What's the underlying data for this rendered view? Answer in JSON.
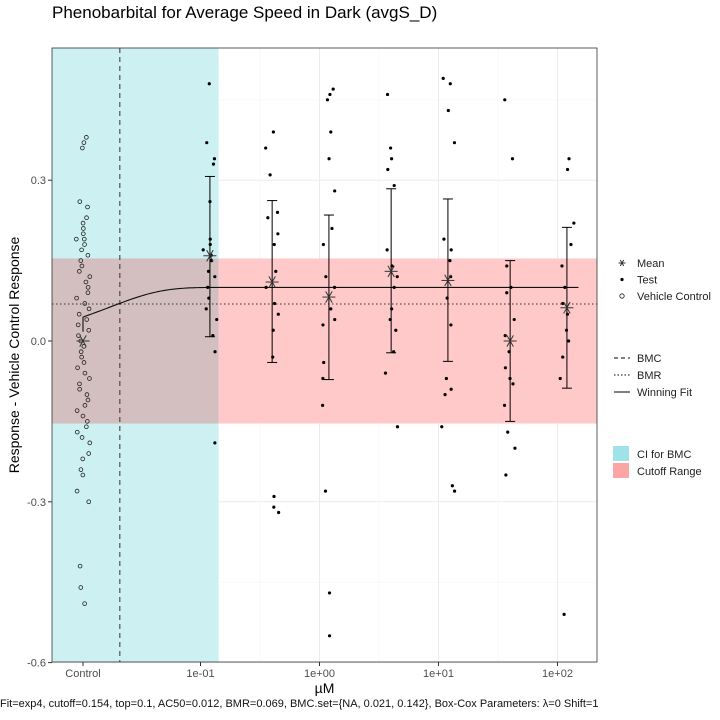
{
  "chart_data": {
    "type": "scatter",
    "title": "Phenobarbital for Average Speed in Dark (avgS_D)",
    "xlabel": "µM",
    "ylabel": "Response - Vehicle Control Response",
    "x_scale": "log10",
    "ylim": [
      -0.6,
      0.55
    ],
    "y_ticks": [
      -0.6,
      -0.3,
      0.0,
      0.3
    ],
    "y_tick_labels": [
      "-0.6",
      "-0.3",
      "0.0",
      "0.3"
    ],
    "x_tick_labels": [
      "Control",
      "1e-01",
      "1e+00",
      "1e+01",
      "1e+02"
    ],
    "x_tick_values": [
      null,
      0.1,
      1,
      10,
      100
    ],
    "grid": true,
    "cutoff": 0.154,
    "bmr": 0.069,
    "bmc": 0.021,
    "bmc_ci": [
      null,
      0.142
    ],
    "fit": {
      "model": "exp4",
      "top": 0.1,
      "ac50": 0.012
    },
    "groups": [
      {
        "conc": "Control",
        "mean": 0.0,
        "ci_low": null,
        "ci_high": null
      },
      {
        "conc": 0.12,
        "mean": 0.159,
        "ci_low": 0.008,
        "ci_high": 0.307
      },
      {
        "conc": 0.4,
        "mean": 0.11,
        "ci_low": -0.04,
        "ci_high": 0.262
      },
      {
        "conc": 1.2,
        "mean": 0.082,
        "ci_low": -0.072,
        "ci_high": 0.235
      },
      {
        "conc": 4.0,
        "mean": 0.13,
        "ci_low": -0.022,
        "ci_high": 0.284
      },
      {
        "conc": 12.0,
        "mean": 0.113,
        "ci_low": -0.038,
        "ci_high": 0.265
      },
      {
        "conc": 40.0,
        "mean": 0.0,
        "ci_low": -0.15,
        "ci_high": 0.15
      },
      {
        "conc": 120.0,
        "mean": 0.062,
        "ci_low": -0.088,
        "ci_high": 0.212
      }
    ],
    "vehicle_control": [
      0.38,
      0.37,
      0.36,
      0.26,
      0.25,
      0.23,
      0.22,
      0.21,
      0.2,
      0.19,
      0.19,
      0.18,
      0.17,
      0.16,
      0.15,
      0.14,
      0.13,
      0.12,
      0.11,
      0.1,
      0.09,
      0.08,
      0.07,
      0.06,
      0.05,
      0.04,
      0.03,
      0.02,
      0.01,
      0.0,
      -0.01,
      -0.02,
      -0.03,
      -0.04,
      -0.05,
      -0.06,
      -0.07,
      -0.08,
      -0.09,
      -0.1,
      -0.11,
      -0.12,
      -0.13,
      -0.14,
      -0.15,
      -0.16,
      -0.17,
      -0.18,
      -0.19,
      -0.21,
      -0.22,
      -0.24,
      -0.25,
      -0.28,
      -0.3,
      -0.42,
      -0.46,
      -0.49
    ],
    "test_points": [
      {
        "conc": 0.12,
        "values": [
          0.48,
          0.37,
          0.34,
          0.33,
          0.26,
          0.19,
          0.18,
          0.17,
          0.16,
          0.15,
          0.13,
          0.12,
          0.1,
          0.08,
          0.06,
          0.04,
          0.01,
          -0.02,
          -0.19
        ]
      },
      {
        "conc": 0.4,
        "values": [
          0.39,
          0.36,
          0.31,
          0.24,
          0.23,
          0.2,
          0.18,
          0.13,
          0.1,
          0.07,
          0.05,
          0.02,
          -0.03,
          -0.29,
          -0.31,
          -0.32
        ]
      },
      {
        "conc": 1.2,
        "values": [
          0.47,
          0.46,
          0.45,
          0.39,
          0.34,
          0.28,
          0.21,
          0.18,
          0.12,
          0.1,
          0.06,
          0.04,
          0.03,
          -0.04,
          -0.07,
          -0.12,
          -0.28,
          -0.47,
          -0.55
        ]
      },
      {
        "conc": 4.0,
        "values": [
          0.46,
          0.36,
          0.34,
          0.32,
          0.29,
          0.17,
          0.14,
          0.12,
          0.1,
          0.06,
          0.04,
          0.02,
          -0.02,
          -0.06,
          -0.16
        ]
      },
      {
        "conc": 12.0,
        "values": [
          0.49,
          0.48,
          0.43,
          0.37,
          0.19,
          0.17,
          0.15,
          0.12,
          0.08,
          0.03,
          -0.07,
          -0.09,
          -0.1,
          -0.16,
          -0.27,
          -0.28
        ]
      },
      {
        "conc": 40.0,
        "values": [
          0.45,
          0.34,
          0.14,
          0.1,
          0.09,
          0.04,
          0.01,
          -0.02,
          -0.05,
          -0.07,
          -0.08,
          -0.12,
          -0.17,
          -0.2,
          -0.25
        ]
      },
      {
        "conc": 120.0,
        "values": [
          0.34,
          0.32,
          0.22,
          0.18,
          0.14,
          0.1,
          0.07,
          0.05,
          0.02,
          0.0,
          -0.03,
          -0.07,
          -0.51
        ]
      }
    ],
    "legend": {
      "points": [
        {
          "symbol": "asterisk",
          "label": "Mean"
        },
        {
          "symbol": "filled-dot",
          "label": "Test"
        },
        {
          "symbol": "open-circle",
          "label": "Vehicle Control"
        }
      ],
      "lines": [
        {
          "style": "dashed",
          "label": "BMC"
        },
        {
          "style": "dotted",
          "label": "BMR"
        },
        {
          "style": "solid",
          "label": "Winning Fit"
        }
      ],
      "bands": [
        {
          "color": "#9fe3e8",
          "label": "CI for BMC"
        },
        {
          "color": "#fba5a5",
          "label": "Cutoff Range"
        }
      ]
    },
    "colors": {
      "ci_band": "#cdf1f3",
      "cutoff_band": "#ffc9c9",
      "overlap": "#d3bfbf",
      "panel_border": "#333333",
      "grid": "#ebebeb"
    }
  },
  "caption": "Fit=exp4, cutoff=0.154, top=0.1, AC50=0.012, BMR=0.069, BMC.set={NA, 0.021, 0.142}, Box-Cox Parameters: λ=0 Shift=1"
}
